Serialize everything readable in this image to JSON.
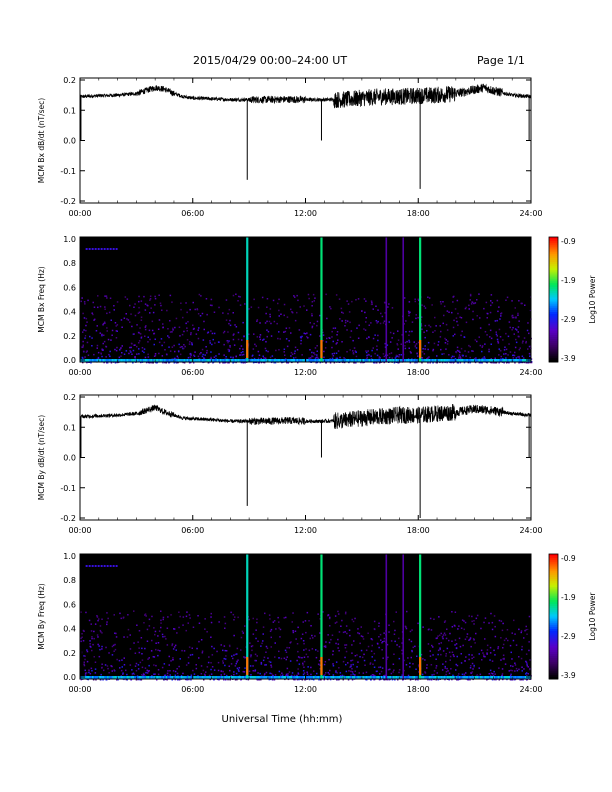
{
  "header": {
    "title": "2015/04/29  00:00–24:00 UT",
    "page": "Page 1/1"
  },
  "xaxis": {
    "ticks": [
      "00:00",
      "06:00",
      "12:00",
      "18:00",
      "24:00"
    ],
    "label": "Universal Time (hh:mm)"
  },
  "colorbar": {
    "label": "Log10 Power",
    "ticks": [
      "-0.9",
      "-1.9",
      "-2.9",
      "-3.9"
    ]
  },
  "chart_data": [
    {
      "type": "line",
      "id": "bx-ts",
      "ylabel": "MCM Bx dB/dt (nT/sec)",
      "ylim": [
        -0.2,
        0.2
      ],
      "yticks": [
        "0.2",
        "0.1",
        "0.0",
        "-0.1",
        "-0.2"
      ],
      "xlim_hours": [
        0,
        24
      ],
      "series": [
        {
          "x_hours": [
            0,
            1,
            2,
            3,
            3.5,
            4,
            4.5,
            5,
            5.5,
            6,
            7,
            8,
            9,
            10,
            11,
            12,
            13,
            14,
            15,
            16,
            17,
            18,
            19,
            20,
            21,
            21.5,
            22,
            23,
            24
          ],
          "y": [
            0.145,
            0.148,
            0.15,
            0.155,
            0.165,
            0.175,
            0.17,
            0.155,
            0.145,
            0.14,
            0.138,
            0.135,
            0.135,
            0.135,
            0.136,
            0.135,
            0.135,
            0.135,
            0.14,
            0.145,
            0.145,
            0.148,
            0.15,
            0.155,
            0.168,
            0.175,
            0.165,
            0.15,
            0.145
          ]
        }
      ],
      "spikes": [
        {
          "x_hours": 0.05,
          "y": 0.0
        },
        {
          "x_hours": 8.9,
          "y": -0.13
        },
        {
          "x_hours": 12.85,
          "y": 0.0
        },
        {
          "x_hours": 18.1,
          "y": -0.16
        },
        {
          "x_hours": 23.9,
          "y": 0.0
        }
      ]
    },
    {
      "type": "heatmap",
      "id": "bx-spec",
      "ylabel": "MCM Bx Freq (Hz)",
      "ylim": [
        0.0,
        1.0
      ],
      "yticks": [
        "1.0",
        "0.8",
        "0.6",
        "0.4",
        "0.2",
        "0.0"
      ],
      "zlim": [
        -3.9,
        -0.9
      ],
      "broadband_lines_hours": [
        8.9,
        12.85,
        16.3,
        17.2,
        18.1
      ]
    },
    {
      "type": "line",
      "id": "by-ts",
      "ylabel": "MCM By dB/dt (nT/sec)",
      "ylim": [
        -0.2,
        0.2
      ],
      "yticks": [
        "0.2",
        "0.1",
        "0.0",
        "-0.1",
        "-0.2"
      ],
      "xlim_hours": [
        0,
        24
      ],
      "series": [
        {
          "x_hours": [
            0,
            1,
            2,
            3,
            3.5,
            4,
            4.5,
            5,
            5.5,
            6,
            7,
            8,
            9,
            10,
            11,
            12,
            13,
            14,
            15,
            16,
            17,
            18,
            19,
            20,
            21,
            22,
            23,
            24
          ],
          "y": [
            0.135,
            0.138,
            0.14,
            0.145,
            0.155,
            0.165,
            0.15,
            0.14,
            0.13,
            0.128,
            0.125,
            0.12,
            0.12,
            0.12,
            0.122,
            0.12,
            0.12,
            0.122,
            0.13,
            0.135,
            0.14,
            0.14,
            0.145,
            0.15,
            0.16,
            0.155,
            0.145,
            0.14
          ]
        }
      ],
      "spikes": [
        {
          "x_hours": 0.05,
          "y": 0.0
        },
        {
          "x_hours": 8.9,
          "y": -0.16
        },
        {
          "x_hours": 12.85,
          "y": 0.0
        },
        {
          "x_hours": 18.1,
          "y": -0.2
        },
        {
          "x_hours": 23.9,
          "y": 0.0
        }
      ]
    },
    {
      "type": "heatmap",
      "id": "by-spec",
      "ylabel": "MCM By Freq (Hz)",
      "ylim": [
        0.0,
        1.0
      ],
      "yticks": [
        "1.0",
        "0.8",
        "0.6",
        "0.4",
        "0.2",
        "0.0"
      ],
      "zlim": [
        -3.9,
        -0.9
      ],
      "broadband_lines_hours": [
        8.9,
        12.85,
        16.3,
        17.2,
        18.1
      ]
    }
  ]
}
